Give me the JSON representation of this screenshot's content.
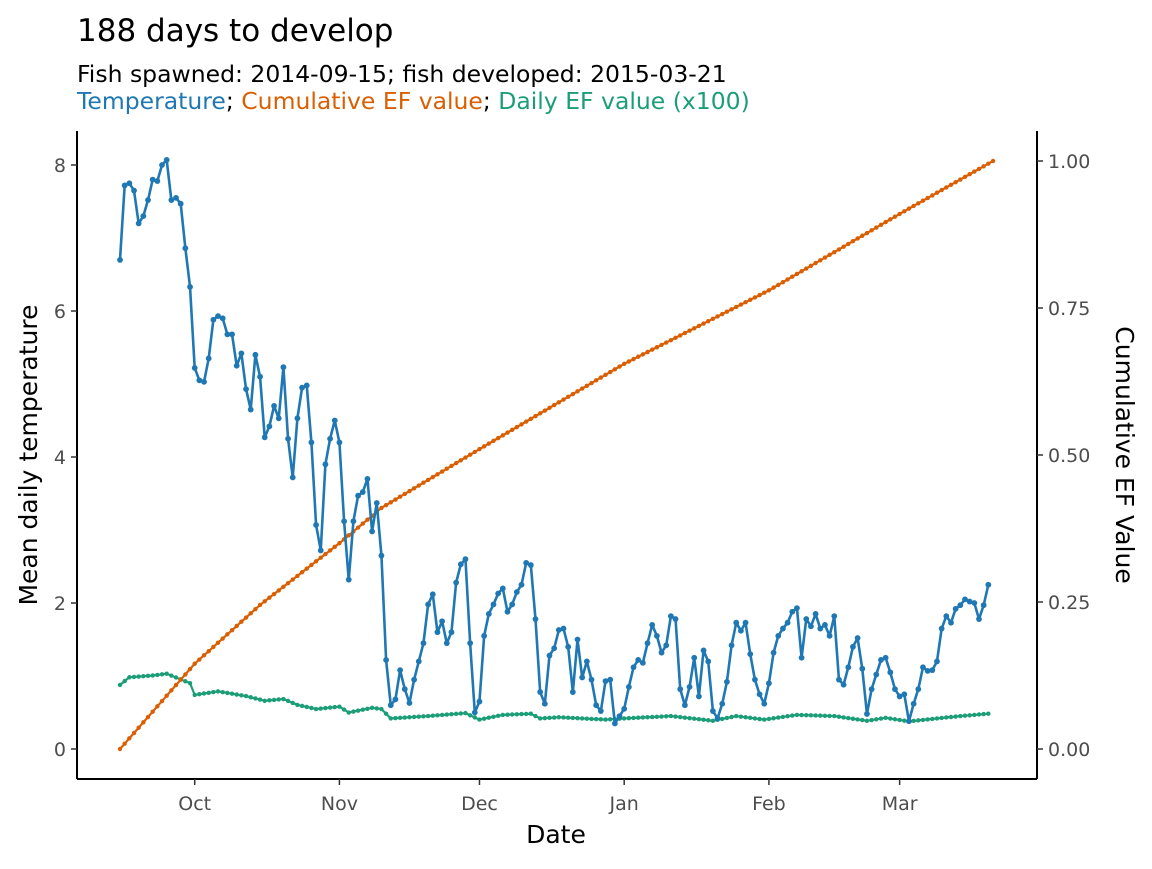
{
  "title": "188 days to develop",
  "subtitle": "Fish spawned: 2014-09-15; fish developed: 2015-03-21",
  "legend_line": {
    "parts": [
      {
        "text": "Temperature",
        "color": "#1f78b4"
      },
      {
        "text": "; ",
        "color": "#000000"
      },
      {
        "text": "Cumulative EF value",
        "color": "#d95f02"
      },
      {
        "text": "; ",
        "color": "#000000"
      },
      {
        "text": "Daily EF value (x100)",
        "color": "#1b9e77"
      }
    ]
  },
  "chart_data": {
    "type": "line",
    "xlabel": "Date",
    "ylabel": "Mean daily temperature",
    "y2label": "Cumulative EF Value",
    "x_range": [
      "2014-09-15",
      "2015-03-21"
    ],
    "x_ticks": [
      {
        "date": "2014-10-01",
        "label": "Oct"
      },
      {
        "date": "2014-11-01",
        "label": "Nov"
      },
      {
        "date": "2014-12-01",
        "label": "Dec"
      },
      {
        "date": "2015-01-01",
        "label": "Jan"
      },
      {
        "date": "2015-02-01",
        "label": "Feb"
      },
      {
        "date": "2015-03-01",
        "label": "Mar"
      }
    ],
    "ylim": [
      0,
      8
    ],
    "y_ticks": [
      0,
      2,
      4,
      6,
      8
    ],
    "y2lim": [
      0,
      1
    ],
    "y2_ticks": [
      "0.00",
      "0.25",
      "0.50",
      "0.75",
      "1.00"
    ],
    "grid": false,
    "series": [
      {
        "name": "Temperature",
        "axis": "left",
        "color": "#1f78b4",
        "points": [
          [
            "2014-09-15",
            6.7
          ],
          [
            "2014-09-16",
            7.72
          ],
          [
            "2014-09-17",
            7.75
          ],
          [
            "2014-09-18",
            7.65
          ],
          [
            "2014-09-19",
            7.2
          ],
          [
            "2014-09-20",
            7.3
          ],
          [
            "2014-09-21",
            7.52
          ],
          [
            "2014-09-22",
            7.8
          ],
          [
            "2014-09-23",
            7.78
          ],
          [
            "2014-09-24",
            8.0
          ],
          [
            "2014-09-25",
            8.07
          ],
          [
            "2014-09-26",
            7.52
          ],
          [
            "2014-09-27",
            7.55
          ],
          [
            "2014-09-28",
            7.47
          ],
          [
            "2014-09-29",
            6.86
          ],
          [
            "2014-09-30",
            6.33
          ],
          [
            "2014-10-01",
            5.22
          ],
          [
            "2014-10-02",
            5.05
          ],
          [
            "2014-10-03",
            5.03
          ],
          [
            "2014-10-04",
            5.35
          ],
          [
            "2014-10-05",
            5.88
          ],
          [
            "2014-10-06",
            5.93
          ],
          [
            "2014-10-07",
            5.9
          ],
          [
            "2014-10-08",
            5.68
          ],
          [
            "2014-10-09",
            5.68
          ],
          [
            "2014-10-10",
            5.25
          ],
          [
            "2014-10-11",
            5.42
          ],
          [
            "2014-10-12",
            4.93
          ],
          [
            "2014-10-13",
            4.65
          ],
          [
            "2014-10-14",
            5.4
          ],
          [
            "2014-10-15",
            5.1
          ],
          [
            "2014-10-16",
            4.27
          ],
          [
            "2014-10-17",
            4.42
          ],
          [
            "2014-10-18",
            4.7
          ],
          [
            "2014-10-19",
            4.53
          ],
          [
            "2014-10-20",
            5.23
          ],
          [
            "2014-10-21",
            4.25
          ],
          [
            "2014-10-22",
            3.72
          ],
          [
            "2014-10-23",
            4.53
          ],
          [
            "2014-10-24",
            4.95
          ],
          [
            "2014-10-25",
            4.98
          ],
          [
            "2014-10-26",
            4.2
          ],
          [
            "2014-10-27",
            3.07
          ],
          [
            "2014-10-28",
            2.72
          ],
          [
            "2014-10-29",
            3.9
          ],
          [
            "2014-10-30",
            4.25
          ],
          [
            "2014-10-31",
            4.5
          ],
          [
            "2014-11-01",
            4.2
          ],
          [
            "2014-11-02",
            3.12
          ],
          [
            "2014-11-03",
            2.32
          ],
          [
            "2014-11-04",
            3.12
          ],
          [
            "2014-11-05",
            3.47
          ],
          [
            "2014-11-06",
            3.52
          ],
          [
            "2014-11-07",
            3.7
          ],
          [
            "2014-11-08",
            2.98
          ],
          [
            "2014-11-09",
            3.37
          ],
          [
            "2014-11-10",
            2.65
          ],
          [
            "2014-11-11",
            1.22
          ],
          [
            "2014-11-12",
            0.6
          ],
          [
            "2014-11-13",
            0.68
          ],
          [
            "2014-11-14",
            1.08
          ],
          [
            "2014-11-15",
            0.82
          ],
          [
            "2014-11-16",
            0.63
          ],
          [
            "2014-11-17",
            0.95
          ],
          [
            "2014-11-18",
            1.2
          ],
          [
            "2014-11-19",
            1.45
          ],
          [
            "2014-11-20",
            1.98
          ],
          [
            "2014-11-21",
            2.12
          ],
          [
            "2014-11-22",
            1.6
          ],
          [
            "2014-11-23",
            1.75
          ],
          [
            "2014-11-24",
            1.45
          ],
          [
            "2014-11-25",
            1.6
          ],
          [
            "2014-11-26",
            2.28
          ],
          [
            "2014-11-27",
            2.53
          ],
          [
            "2014-11-28",
            2.6
          ],
          [
            "2014-11-29",
            1.45
          ],
          [
            "2014-11-30",
            0.5
          ],
          [
            "2014-12-01",
            0.65
          ],
          [
            "2014-12-02",
            1.55
          ],
          [
            "2014-12-03",
            1.85
          ],
          [
            "2014-12-04",
            1.98
          ],
          [
            "2014-12-05",
            2.13
          ],
          [
            "2014-12-06",
            2.2
          ],
          [
            "2014-12-07",
            1.88
          ],
          [
            "2014-12-08",
            1.98
          ],
          [
            "2014-12-09",
            2.15
          ],
          [
            "2014-12-10",
            2.25
          ],
          [
            "2014-12-11",
            2.55
          ],
          [
            "2014-12-12",
            2.52
          ],
          [
            "2014-12-13",
            1.78
          ],
          [
            "2014-12-14",
            0.78
          ],
          [
            "2014-12-15",
            0.62
          ],
          [
            "2014-12-16",
            1.28
          ],
          [
            "2014-12-17",
            1.38
          ],
          [
            "2014-12-18",
            1.63
          ],
          [
            "2014-12-19",
            1.65
          ],
          [
            "2014-12-20",
            1.4
          ],
          [
            "2014-12-21",
            0.78
          ],
          [
            "2014-12-22",
            1.5
          ],
          [
            "2014-12-23",
            0.98
          ],
          [
            "2014-12-24",
            1.2
          ],
          [
            "2014-12-25",
            0.95
          ],
          [
            "2014-12-26",
            0.6
          ],
          [
            "2014-12-27",
            0.52
          ],
          [
            "2014-12-28",
            0.93
          ],
          [
            "2014-12-29",
            0.95
          ],
          [
            "2014-12-30",
            0.35
          ],
          [
            "2014-12-31",
            0.45
          ],
          [
            "2015-01-01",
            0.55
          ],
          [
            "2015-01-02",
            0.85
          ],
          [
            "2015-01-03",
            1.12
          ],
          [
            "2015-01-04",
            1.22
          ],
          [
            "2015-01-05",
            1.18
          ],
          [
            "2015-01-06",
            1.45
          ],
          [
            "2015-01-07",
            1.7
          ],
          [
            "2015-01-08",
            1.55
          ],
          [
            "2015-01-09",
            1.32
          ],
          [
            "2015-01-10",
            1.42
          ],
          [
            "2015-01-11",
            1.82
          ],
          [
            "2015-01-12",
            1.78
          ],
          [
            "2015-01-13",
            0.82
          ],
          [
            "2015-01-14",
            0.6
          ],
          [
            "2015-01-15",
            0.85
          ],
          [
            "2015-01-16",
            1.25
          ],
          [
            "2015-01-17",
            0.72
          ],
          [
            "2015-01-18",
            1.35
          ],
          [
            "2015-01-19",
            1.2
          ],
          [
            "2015-01-20",
            0.52
          ],
          [
            "2015-01-21",
            0.42
          ],
          [
            "2015-01-22",
            0.62
          ],
          [
            "2015-01-23",
            0.92
          ],
          [
            "2015-01-24",
            1.42
          ],
          [
            "2015-01-25",
            1.73
          ],
          [
            "2015-01-26",
            1.62
          ],
          [
            "2015-01-27",
            1.73
          ],
          [
            "2015-01-28",
            1.3
          ],
          [
            "2015-01-29",
            0.95
          ],
          [
            "2015-01-30",
            0.75
          ],
          [
            "2015-01-31",
            0.62
          ],
          [
            "2015-02-01",
            0.9
          ],
          [
            "2015-02-02",
            1.32
          ],
          [
            "2015-02-03",
            1.55
          ],
          [
            "2015-02-04",
            1.65
          ],
          [
            "2015-02-05",
            1.73
          ],
          [
            "2015-02-06",
            1.88
          ],
          [
            "2015-02-07",
            1.93
          ],
          [
            "2015-02-08",
            1.25
          ],
          [
            "2015-02-09",
            1.78
          ],
          [
            "2015-02-10",
            1.68
          ],
          [
            "2015-02-11",
            1.85
          ],
          [
            "2015-02-12",
            1.65
          ],
          [
            "2015-02-13",
            1.7
          ],
          [
            "2015-02-14",
            1.55
          ],
          [
            "2015-02-15",
            1.82
          ],
          [
            "2015-02-16",
            0.95
          ],
          [
            "2015-02-17",
            0.88
          ],
          [
            "2015-02-18",
            1.12
          ],
          [
            "2015-02-19",
            1.4
          ],
          [
            "2015-02-20",
            1.52
          ],
          [
            "2015-02-21",
            1.1
          ],
          [
            "2015-02-22",
            0.48
          ],
          [
            "2015-02-23",
            0.82
          ],
          [
            "2015-02-24",
            1.02
          ],
          [
            "2015-02-25",
            1.22
          ],
          [
            "2015-02-26",
            1.25
          ],
          [
            "2015-02-27",
            1.05
          ],
          [
            "2015-02-28",
            0.82
          ],
          [
            "2015-03-01",
            0.72
          ],
          [
            "2015-03-02",
            0.75
          ],
          [
            "2015-03-03",
            0.38
          ],
          [
            "2015-03-04",
            0.62
          ],
          [
            "2015-03-05",
            0.82
          ],
          [
            "2015-03-06",
            1.12
          ],
          [
            "2015-03-07",
            1.07
          ],
          [
            "2015-03-08",
            1.08
          ],
          [
            "2015-03-09",
            1.2
          ],
          [
            "2015-03-10",
            1.65
          ],
          [
            "2015-03-11",
            1.82
          ],
          [
            "2015-03-12",
            1.73
          ],
          [
            "2015-03-13",
            1.92
          ],
          [
            "2015-03-14",
            1.97
          ],
          [
            "2015-03-15",
            2.05
          ],
          [
            "2015-03-16",
            2.02
          ],
          [
            "2015-03-17",
            2.0
          ],
          [
            "2015-03-18",
            1.78
          ],
          [
            "2015-03-19",
            1.97
          ],
          [
            "2015-03-20",
            2.25
          ]
        ]
      },
      {
        "name": "Cumulative EF value",
        "axis": "right",
        "color": "#d95f02",
        "points": [
          [
            "2014-09-15",
            0.0
          ],
          [
            "2014-10-01",
            0.145
          ],
          [
            "2014-10-15",
            0.245
          ],
          [
            "2014-11-01",
            0.35
          ],
          [
            "2014-11-10",
            0.41
          ],
          [
            "2014-12-01",
            0.51
          ],
          [
            "2015-01-01",
            0.655
          ],
          [
            "2015-02-01",
            0.78
          ],
          [
            "2015-03-01",
            0.91
          ],
          [
            "2015-03-21",
            1.0
          ]
        ]
      },
      {
        "name": "Daily EF value (x100)",
        "axis": "right",
        "color": "#1b9e77",
        "points": [
          [
            "2014-09-15",
            0.109
          ],
          [
            "2014-09-17",
            0.122
          ],
          [
            "2014-09-22",
            0.125
          ],
          [
            "2014-09-25",
            0.128
          ],
          [
            "2014-09-30",
            0.112
          ],
          [
            "2014-10-01",
            0.092
          ],
          [
            "2014-10-06",
            0.098
          ],
          [
            "2014-10-12",
            0.09
          ],
          [
            "2014-10-16",
            0.082
          ],
          [
            "2014-10-20",
            0.085
          ],
          [
            "2014-10-23",
            0.075
          ],
          [
            "2014-10-27",
            0.068
          ],
          [
            "2014-11-01",
            0.072
          ],
          [
            "2014-11-03",
            0.062
          ],
          [
            "2014-11-08",
            0.07
          ],
          [
            "2014-11-10",
            0.068
          ],
          [
            "2014-11-12",
            0.052
          ],
          [
            "2014-11-20",
            0.056
          ],
          [
            "2014-11-28",
            0.061
          ],
          [
            "2014-12-01",
            0.05
          ],
          [
            "2014-12-06",
            0.058
          ],
          [
            "2014-12-12",
            0.06
          ],
          [
            "2014-12-14",
            0.052
          ],
          [
            "2014-12-18",
            0.054
          ],
          [
            "2014-12-28",
            0.05
          ],
          [
            "2015-01-01",
            0.052
          ],
          [
            "2015-01-11",
            0.056
          ],
          [
            "2015-01-20",
            0.048
          ],
          [
            "2015-01-25",
            0.056
          ],
          [
            "2015-01-31",
            0.05
          ],
          [
            "2015-02-07",
            0.058
          ],
          [
            "2015-02-15",
            0.056
          ],
          [
            "2015-02-22",
            0.048
          ],
          [
            "2015-02-26",
            0.053
          ],
          [
            "2015-03-03",
            0.047
          ],
          [
            "2015-03-09",
            0.052
          ],
          [
            "2015-03-14",
            0.056
          ],
          [
            "2015-03-20",
            0.06
          ]
        ]
      }
    ]
  }
}
